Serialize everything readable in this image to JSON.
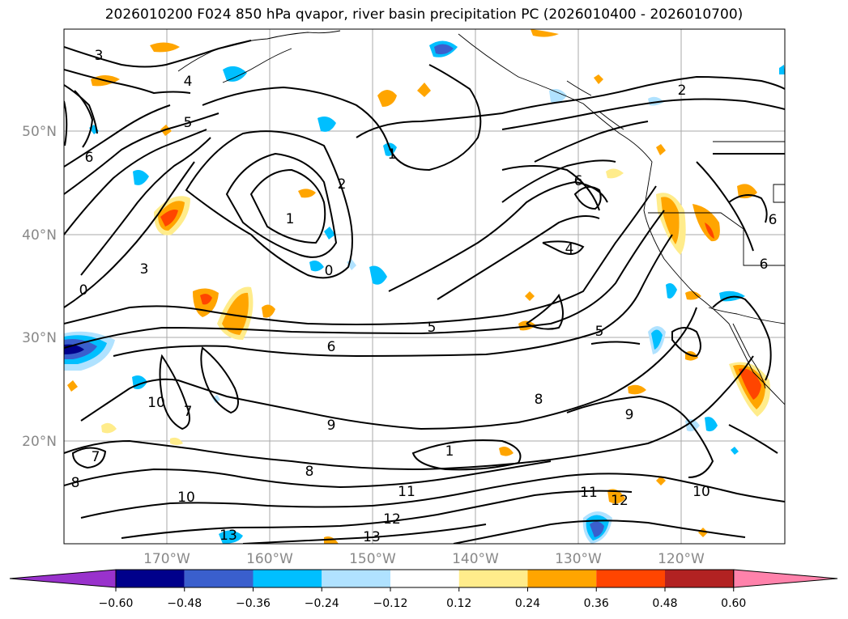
{
  "title": "2026010200 F024 850 hPa qvapor, river basin precipitation PC (2026010400 - 2026010700)",
  "map": {
    "lat_labels": [
      "50°N",
      "40°N",
      "30°N",
      "20°N"
    ],
    "lon_labels": [
      "170°W",
      "160°W",
      "150°W",
      "140°W",
      "130°W",
      "120°W"
    ],
    "contour_labels": [
      "3",
      "4",
      "5",
      "6",
      "3",
      "2",
      "1",
      "0",
      "2",
      "1",
      "6",
      "4",
      "5",
      "5",
      "6",
      "7",
      "8",
      "9",
      "9",
      "10",
      "10",
      "11",
      "12",
      "13",
      "13",
      "12",
      "11",
      "10",
      "8",
      "7",
      "8",
      "1",
      "0",
      "6",
      "6"
    ]
  },
  "colorbar": {
    "ticks": [
      "−0.60",
      "−0.48",
      "−0.36",
      "−0.24",
      "−0.12",
      "0.12",
      "0.24",
      "0.36",
      "0.48",
      "0.60"
    ],
    "colors": {
      "under": "#9932cc",
      "bins": [
        "#00008b",
        "#3a5fcd",
        "#00bfff",
        "#b0e2ff",
        "#ffffff",
        "#ffec8b",
        "#ffa500",
        "#ff4500",
        "#b22222"
      ],
      "over": "#ff82ab"
    }
  }
}
